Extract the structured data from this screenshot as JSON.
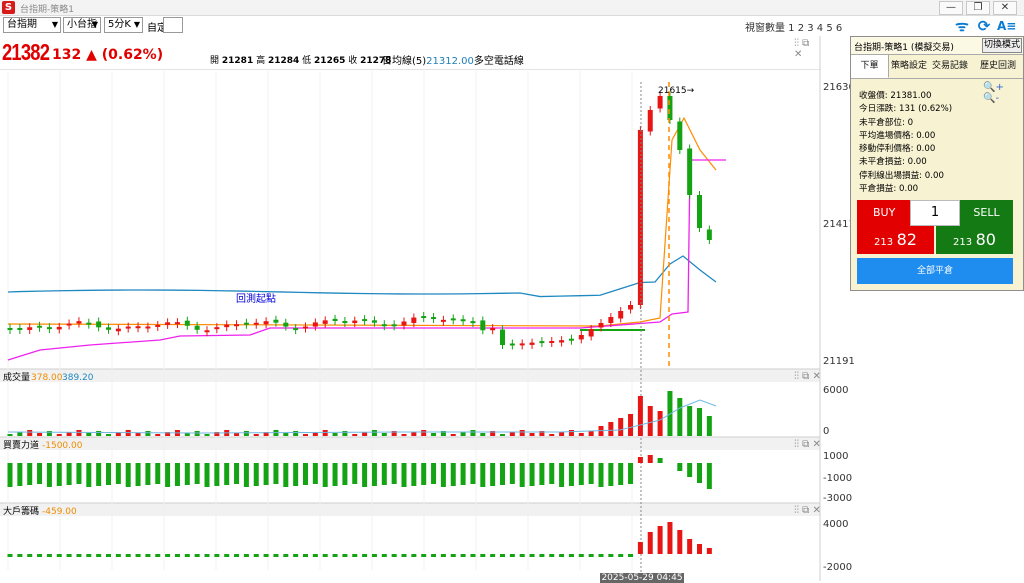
{
  "window": {
    "title": "台指期-策略1",
    "app_icon": "S",
    "minimize": "—",
    "restore": "❐",
    "close": "✕"
  },
  "toolbar": {
    "symbol": "台指期",
    "contract": "小台指",
    "period": "5分K",
    "custom_label": "自定",
    "custom_value": "",
    "view_count": "視窗數量 1 2 3 4 5 6",
    "icons": [
      "antenna-icon",
      "refresh-icon",
      "text-settings-icon"
    ]
  },
  "quote": {
    "last": "21382",
    "change": "132 ▲ (0.62%)",
    "open_label": "開",
    "open": "21281",
    "high_label": "高",
    "high": "21284",
    "low_label": "低",
    "low": "21265",
    "close_label": "收",
    "close": "21278",
    "ma_label": "日均線(5)",
    "ma_value": "21312.00",
    "ma_suffix": "多空電話線"
  },
  "main_chart": {
    "y_ticks": [
      "21630",
      "21411",
      "21191"
    ],
    "marker": "21615→",
    "annotation": "回測起點",
    "colors": {
      "up": "#e81515",
      "down": "#13a313",
      "ma": "#ff8c00",
      "stop": "#ee22ee",
      "band": "#1e88c0",
      "entry": "#13a313"
    }
  },
  "volume_panel": {
    "label": "成交量",
    "v1": "378.00",
    "v2": "389.20",
    "y_ticks": [
      "6000",
      "0"
    ]
  },
  "power_panel": {
    "label": "買賣力道",
    "value": "-1500.00",
    "y_ticks": [
      "1000",
      "-1000",
      "-3000"
    ]
  },
  "big_panel": {
    "label": "大戶籌碼",
    "value": "-459.00",
    "y_ticks": [
      "4000",
      "-2000"
    ]
  },
  "crosshair_date": "2025-05-29 04:45",
  "panel_icons": "⫶⫶ ⧉ ✕",
  "sidebar": {
    "title": "台指期-策略1 (模擬交易)",
    "mode_button": "切換模式",
    "tabs": [
      "下單",
      "策略設定",
      "交易記錄",
      "歷史回測"
    ],
    "zoom": "🔍+ 🔍-",
    "info": [
      "收盤價: 21381.00",
      "今日漲跌: 131 (0.62%)",
      "未平倉部位: 0",
      "平均進場價格: 0.00",
      "移動停利價格: 0.00",
      "未平倉損益: 0.00",
      "停利線出場損益: 0.00",
      "平倉損益: 0.00"
    ],
    "buy": "BUY",
    "qty": "1",
    "sell": "SELL",
    "bid_prefix": "213",
    "bid_big": "82",
    "ask_prefix": "213",
    "ask_big": "80",
    "flatten": "全部平倉"
  }
}
